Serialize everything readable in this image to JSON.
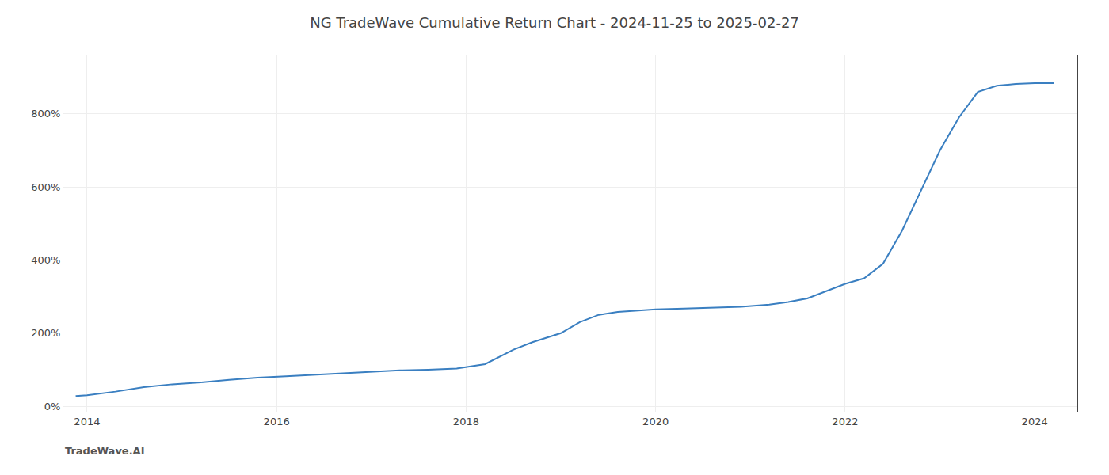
{
  "chart_data": {
    "type": "line",
    "title": "NG TradeWave Cumulative Return Chart - 2024-11-25 to 2025-02-27",
    "annotations": [
      "TradeWave.AI"
    ],
    "x": [
      2013.88,
      2014.0,
      2014.3,
      2014.6,
      2014.9,
      2015.2,
      2015.5,
      2015.8,
      2016.1,
      2016.4,
      2016.7,
      2017.0,
      2017.3,
      2017.6,
      2017.9,
      2018.2,
      2018.5,
      2018.7,
      2019.0,
      2019.2,
      2019.4,
      2019.6,
      2019.8,
      2020.0,
      2020.3,
      2020.6,
      2020.9,
      2021.2,
      2021.4,
      2021.6,
      2021.8,
      2022.0,
      2022.2,
      2022.4,
      2022.6,
      2022.8,
      2023.0,
      2023.2,
      2023.4,
      2023.6,
      2023.8,
      2024.0,
      2024.2
    ],
    "values": [
      28,
      30,
      40,
      52,
      60,
      65,
      72,
      78,
      82,
      86,
      90,
      95,
      98,
      100,
      103,
      115,
      155,
      175,
      200,
      230,
      250,
      258,
      262,
      265,
      267,
      270,
      272,
      278,
      285,
      295,
      315,
      335,
      350,
      390,
      480,
      590,
      700,
      790,
      860,
      877,
      882,
      884,
      884
    ],
    "color": "#3a7fc1",
    "xlim": [
      2013.75,
      2024.45
    ],
    "ylim": [
      -15,
      960
    ],
    "xticks": [
      2014,
      2016,
      2018,
      2020,
      2022,
      2024
    ],
    "yticks": [
      {
        "value": 0,
        "label": "0%"
      },
      {
        "value": 200,
        "label": "200%"
      },
      {
        "value": 400,
        "label": "400%"
      },
      {
        "value": 600,
        "label": "600%"
      },
      {
        "value": 800,
        "label": "800%"
      }
    ],
    "grid": true
  }
}
